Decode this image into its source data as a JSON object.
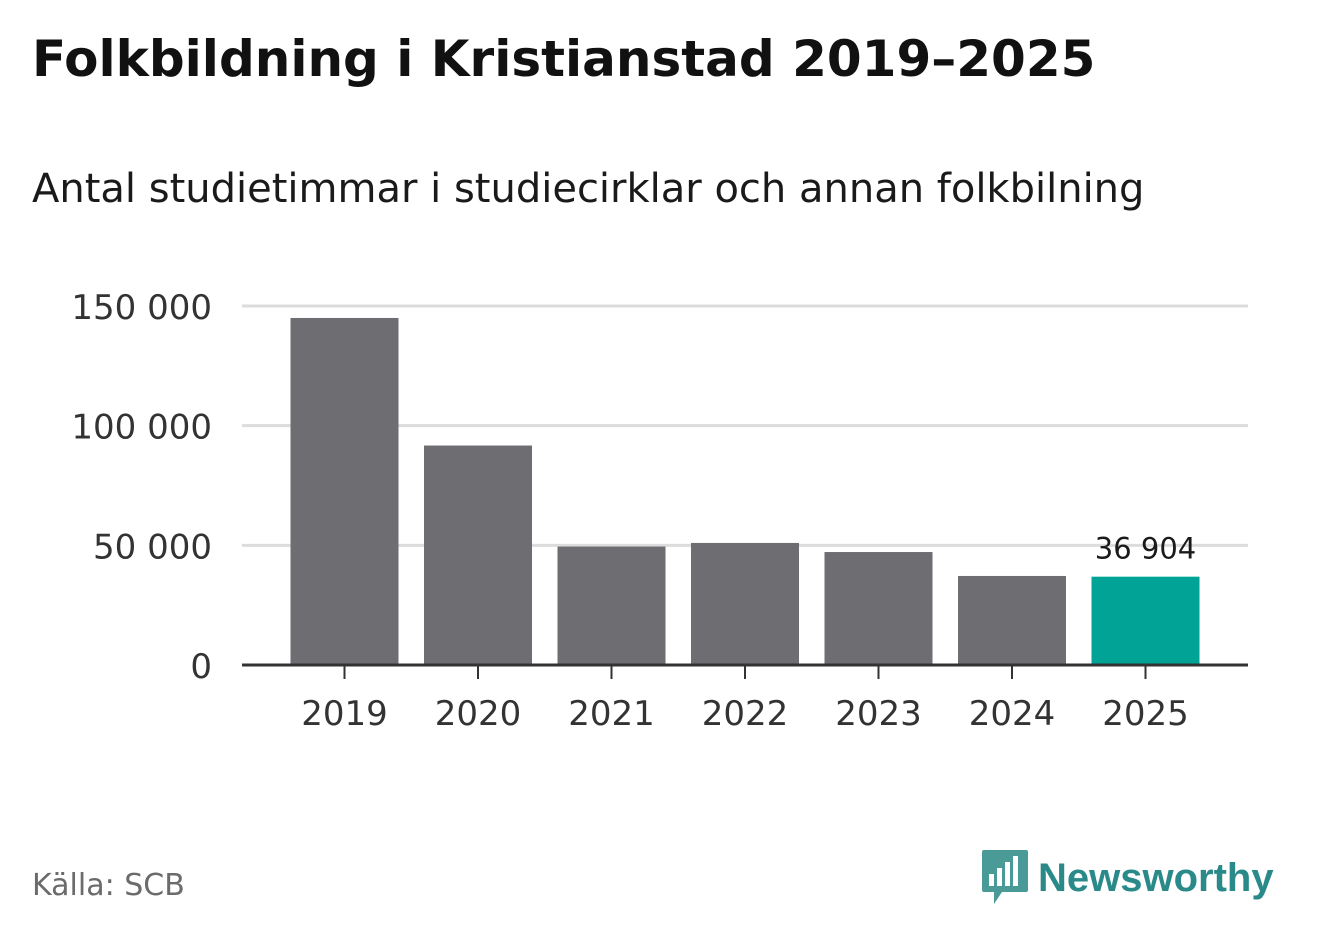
{
  "header": {
    "title": "Folkbildning i Kristianstad 2019–2025",
    "subtitle": "Antal studietimmar i studiecirklar och annan folkbilning"
  },
  "footer": {
    "source": "Källa: SCB",
    "brand": "Newsworthy",
    "brand_icon": "bar-chart-speech-bubble-icon"
  },
  "colors": {
    "bar": "#6e6d72",
    "highlight": "#00a396",
    "grid": "#dcdcdc",
    "axis": "#333333",
    "brand": "#2a8a8a"
  },
  "chart_data": {
    "type": "bar",
    "categories": [
      "2019",
      "2020",
      "2021",
      "2022",
      "2023",
      "2024",
      "2025"
    ],
    "values": [
      145000,
      91700,
      49500,
      51000,
      47200,
      37200,
      36904
    ],
    "ylim": [
      0,
      150000
    ],
    "yticks": [
      0,
      50000,
      100000,
      150000
    ],
    "ytick_labels": [
      "0",
      "50 000",
      "100 000",
      "150 000"
    ],
    "highlight_index": 6,
    "data_labels": [
      {
        "index": 6,
        "text": "36 904"
      }
    ],
    "grid": true,
    "xlabel": "",
    "ylabel": ""
  }
}
